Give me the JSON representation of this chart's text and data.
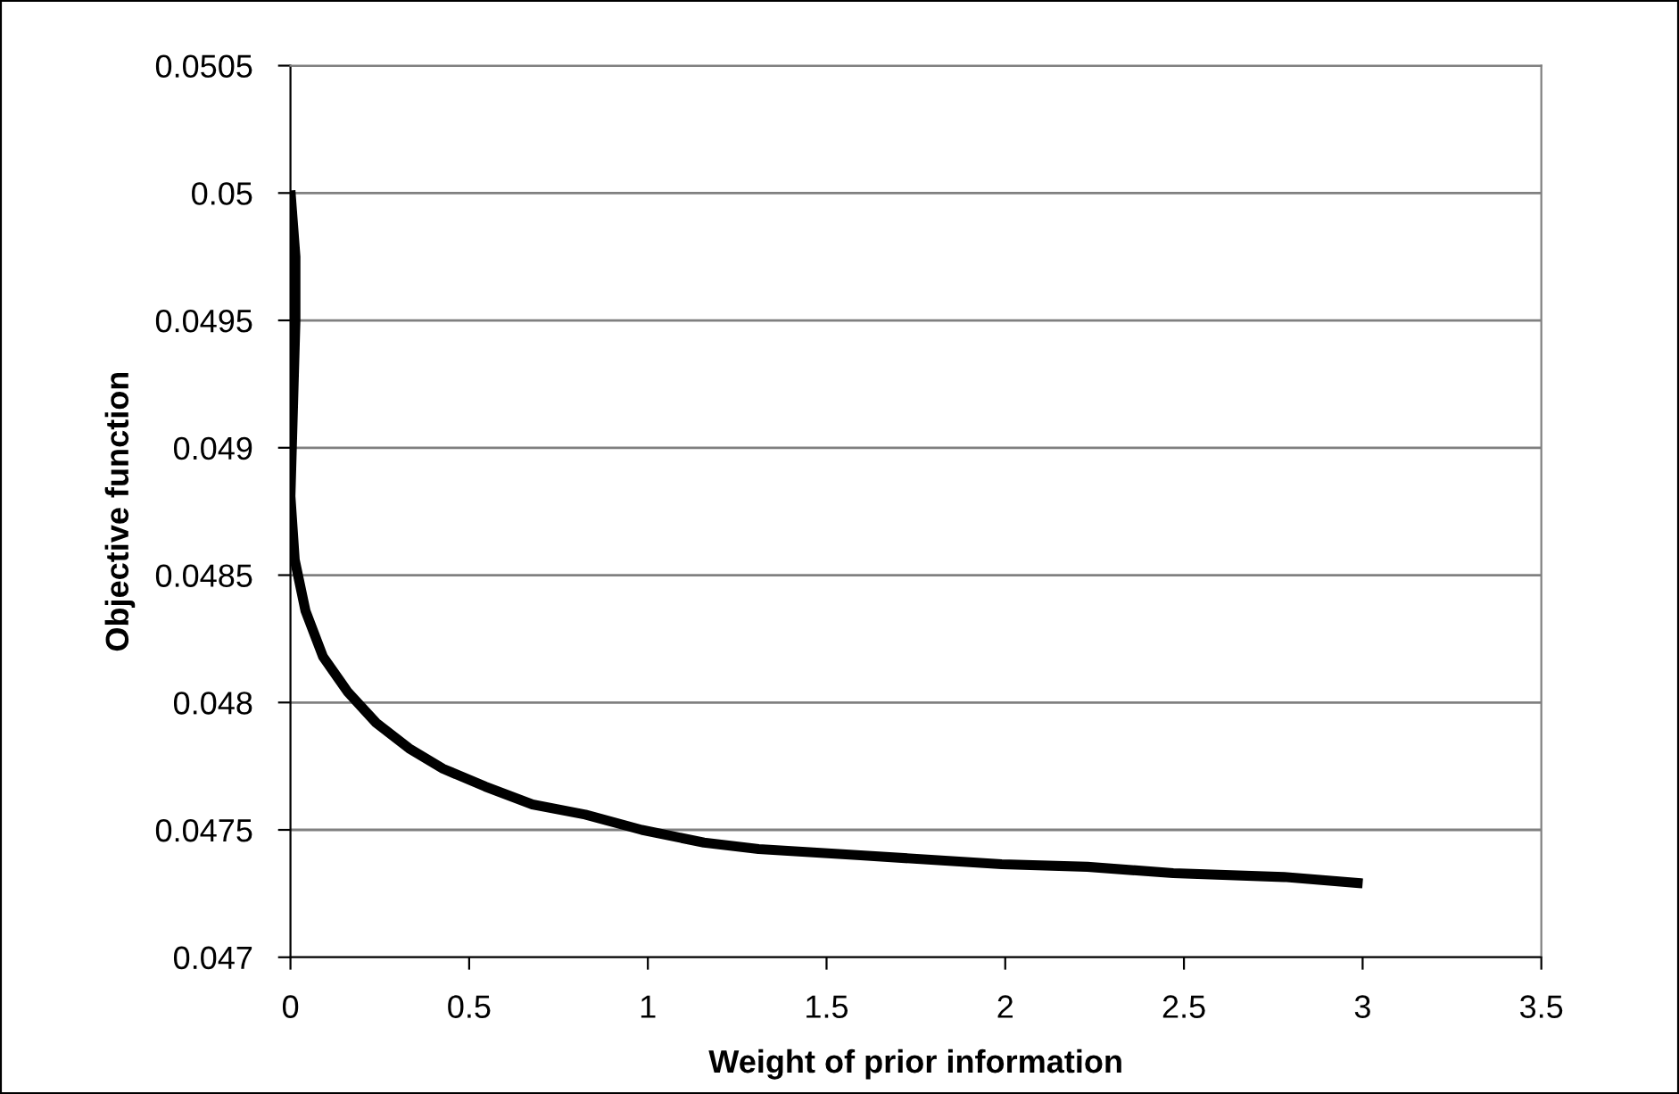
{
  "chart_data": {
    "type": "line",
    "xlabel": "Weight of prior information",
    "ylabel": "Objective function",
    "series": [
      {
        "color": "#000000",
        "x": [
          0,
          0.014,
          0.014,
          0,
          0.012,
          0.042,
          0.091,
          0.161,
          0.24,
          0.332,
          0.427,
          0.545,
          0.677,
          0.825,
          0.983,
          1.157,
          1.31,
          1.595,
          1.99,
          2.23,
          2.47,
          2.78,
          3.0
        ],
        "values": [
          0.05001,
          0.04975,
          0.0495,
          0.04881,
          0.04856,
          0.04836,
          0.04818,
          0.04804,
          0.04792,
          0.04782,
          0.04774,
          0.04767,
          0.0476,
          0.04756,
          0.0475,
          0.04745,
          0.047425,
          0.0474,
          0.047365,
          0.047355,
          0.04733,
          0.047315,
          0.04729
        ]
      }
    ],
    "xlim": [
      0,
      3.5
    ],
    "xticks": [
      0,
      0.5,
      1,
      1.5,
      2,
      2.5,
      3,
      3.5
    ],
    "ylim": [
      0.047,
      0.0505
    ],
    "yticks": [
      0.047,
      0.0475,
      0.048,
      0.0485,
      0.049,
      0.0495,
      0.05,
      0.0505
    ],
    "grid": "y",
    "legend": false,
    "marker": "none",
    "line_style": "solid"
  }
}
